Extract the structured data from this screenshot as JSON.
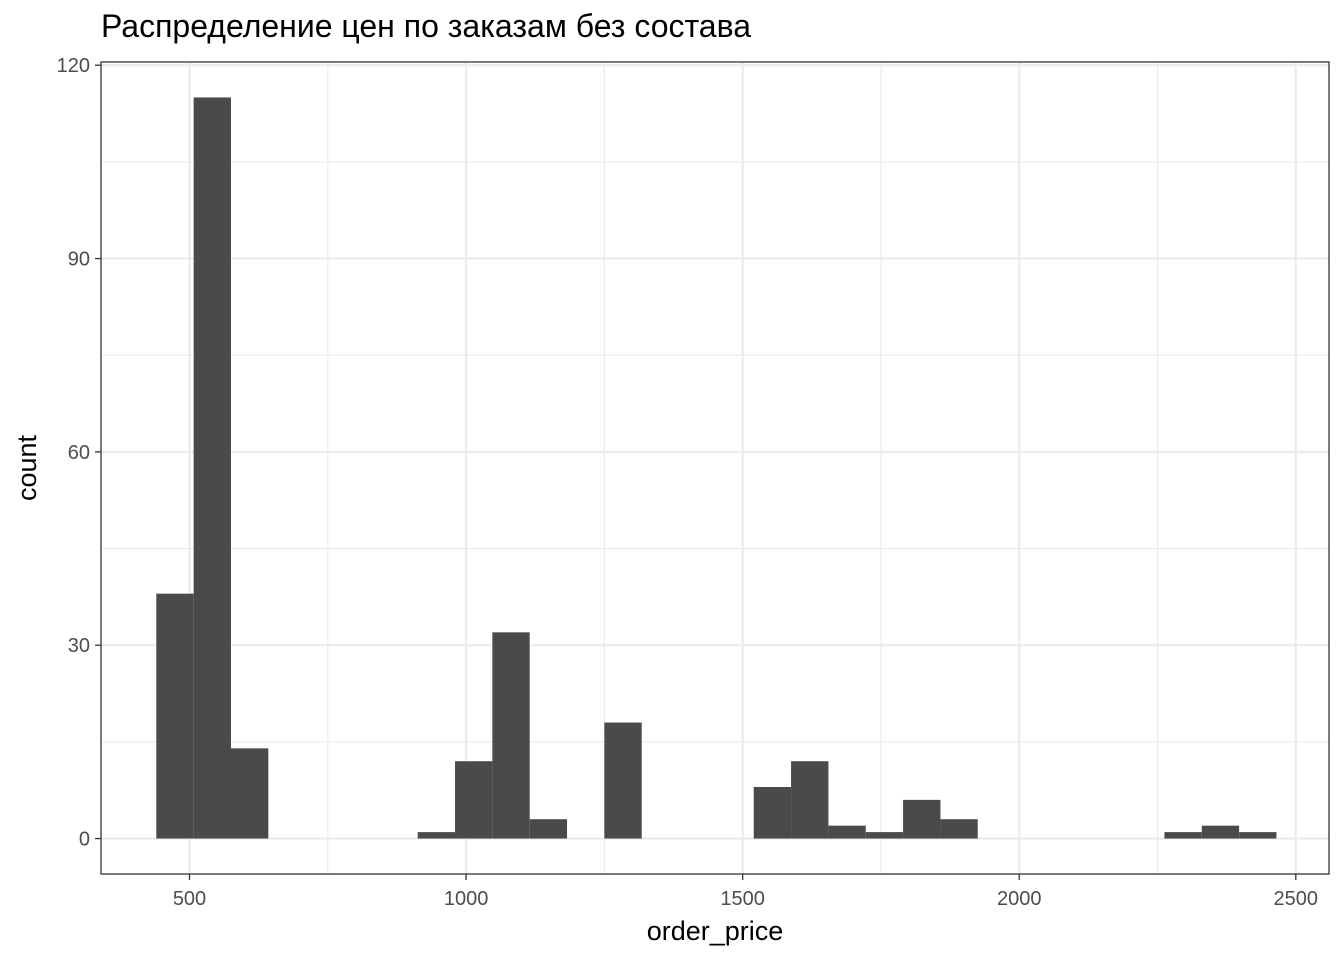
{
  "chart_data": {
    "type": "bar",
    "subtype": "histogram",
    "title": "Распределение цен по заказам без состава",
    "xlabel": "order_price",
    "ylabel": "count",
    "xlim": [
      340,
      2560
    ],
    "ylim": [
      -5.5,
      120.5
    ],
    "x_ticks": [
      500,
      1000,
      1500,
      2000,
      2500
    ],
    "y_ticks": [
      0,
      30,
      60,
      90,
      120
    ],
    "bin_width": 67.5,
    "bins": [
      {
        "x0": 440,
        "x1": 507.5,
        "count": 38
      },
      {
        "x0": 507.5,
        "x1": 575,
        "count": 115
      },
      {
        "x0": 575,
        "x1": 642.5,
        "count": 14
      },
      {
        "x0": 912.5,
        "x1": 980,
        "count": 1
      },
      {
        "x0": 980,
        "x1": 1047.5,
        "count": 12
      },
      {
        "x0": 1047.5,
        "x1": 1115,
        "count": 32
      },
      {
        "x0": 1115,
        "x1": 1182.5,
        "count": 3
      },
      {
        "x0": 1250,
        "x1": 1317.5,
        "count": 18
      },
      {
        "x0": 1520,
        "x1": 1587.5,
        "count": 8
      },
      {
        "x0": 1587.5,
        "x1": 1655,
        "count": 12
      },
      {
        "x0": 1655,
        "x1": 1722.5,
        "count": 2
      },
      {
        "x0": 1722.5,
        "x1": 1790,
        "count": 1
      },
      {
        "x0": 1790,
        "x1": 1857.5,
        "count": 6
      },
      {
        "x0": 1857.5,
        "x1": 1925,
        "count": 3
      },
      {
        "x0": 2262.5,
        "x1": 2330,
        "count": 1
      },
      {
        "x0": 2330,
        "x1": 2397.5,
        "count": 2
      },
      {
        "x0": 2397.5,
        "x1": 2465,
        "count": 1
      }
    ],
    "grid": true,
    "theme": "bw",
    "bar_color": "#4a4a4a",
    "grid_color": "#ebebeb"
  }
}
